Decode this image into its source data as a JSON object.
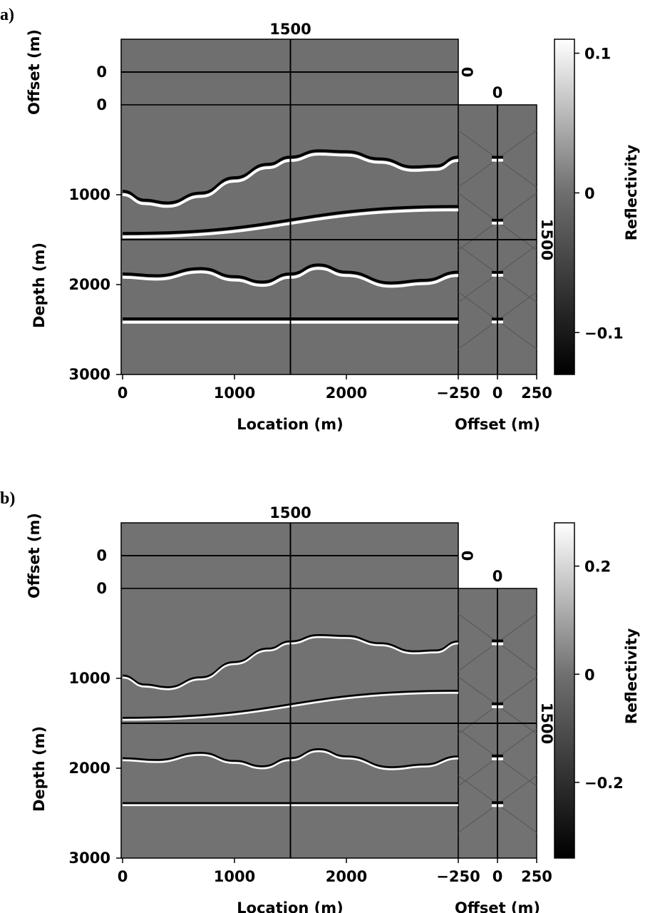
{
  "chart_data": [
    {
      "type": "heatmap",
      "panel_label": "a)",
      "xlabel": "Location (m)",
      "ylabel": "Depth (m)",
      "top_ylabel": "Offset (m)",
      "gather_xlabel": "Offset (m)",
      "colorbar_label": "Reflectivity",
      "x_ticks": [
        "0",
        "1000",
        "2000"
      ],
      "x_tick_values": [
        0,
        1000,
        2000
      ],
      "xlim": [
        0,
        3000
      ],
      "y_ticks": [
        "1000",
        "2000",
        "3000"
      ],
      "y_tick_values": [
        1000,
        2000,
        3000
      ],
      "ylim": [
        0,
        3000
      ],
      "depth_zero_label": "0",
      "offset_zero_label": "0",
      "offset_zero_right_label": "0",
      "gather_top_label": "0",
      "crosshair_location_label": "1500",
      "crosshair_depth_label": "1500",
      "crosshair_location": 1500,
      "crosshair_depth": 1500,
      "gather_ticks": [
        "−250",
        "0",
        "250"
      ],
      "gather_tick_values": [
        -250,
        0,
        250
      ],
      "colorbar_ticks": [
        "0.1",
        "0",
        "−0.1"
      ],
      "colorbar_tick_values": [
        0.1,
        0,
        -0.1
      ],
      "colorbar_range": [
        -0.13,
        0.11
      ],
      "reflectors": [
        {
          "name": "dome",
          "points": [
            [
              0,
              980
            ],
            [
              200,
              1080
            ],
            [
              400,
              1110
            ],
            [
              700,
              1000
            ],
            [
              1000,
              830
            ],
            [
              1300,
              680
            ],
            [
              1500,
              600
            ],
            [
              1750,
              530
            ],
            [
              2000,
              540
            ],
            [
              2300,
              620
            ],
            [
              2600,
              710
            ],
            [
              2800,
              700
            ],
            [
              3000,
              600
            ]
          ]
        },
        {
          "name": "dipping",
          "points": [
            [
              0,
              1450
            ],
            [
              3000,
              1150
            ]
          ]
        },
        {
          "name": "wavy",
          "points": [
            [
              0,
              1900
            ],
            [
              300,
              1920
            ],
            [
              700,
              1840
            ],
            [
              1000,
              1930
            ],
            [
              1250,
              1990
            ],
            [
              1500,
              1900
            ],
            [
              1750,
              1800
            ],
            [
              2000,
              1880
            ],
            [
              2400,
              2000
            ],
            [
              2700,
              1970
            ],
            [
              3000,
              1880
            ]
          ]
        },
        {
          "name": "flat",
          "points": [
            [
              0,
              2400
            ],
            [
              3000,
              2400
            ]
          ]
        }
      ],
      "gather_focus_depths": [
        600,
        1300,
        1880,
        2400
      ]
    },
    {
      "type": "heatmap",
      "panel_label": "b)",
      "xlabel": "Location (m)",
      "ylabel": "Depth (m)",
      "top_ylabel": "Offset (m)",
      "gather_xlabel": "Offset (m)",
      "colorbar_label": "Reflectivity",
      "x_ticks": [
        "0",
        "1000",
        "2000"
      ],
      "x_tick_values": [
        0,
        1000,
        2000
      ],
      "xlim": [
        0,
        3000
      ],
      "y_ticks": [
        "1000",
        "2000",
        "3000"
      ],
      "y_tick_values": [
        1000,
        2000,
        3000
      ],
      "ylim": [
        0,
        3000
      ],
      "depth_zero_label": "0",
      "offset_zero_label": "0",
      "offset_zero_right_label": "0",
      "gather_top_label": "0",
      "crosshair_location_label": "1500",
      "crosshair_depth_label": "1500",
      "crosshair_location": 1500,
      "crosshair_depth": 1500,
      "gather_ticks": [
        "−250",
        "0",
        "250"
      ],
      "gather_tick_values": [
        -250,
        0,
        250
      ],
      "colorbar_ticks": [
        "0.2",
        "0",
        "−0.2"
      ],
      "colorbar_tick_values": [
        0.2,
        0,
        -0.2
      ],
      "colorbar_range": [
        -0.34,
        0.28
      ],
      "reflectors": [
        {
          "name": "dome",
          "points": [
            [
              0,
              980
            ],
            [
              200,
              1080
            ],
            [
              400,
              1110
            ],
            [
              700,
              1000
            ],
            [
              1000,
              830
            ],
            [
              1300,
              680
            ],
            [
              1500,
              600
            ],
            [
              1750,
              530
            ],
            [
              2000,
              540
            ],
            [
              2300,
              620
            ],
            [
              2600,
              710
            ],
            [
              2800,
              700
            ],
            [
              3000,
              600
            ]
          ]
        },
        {
          "name": "dipping",
          "points": [
            [
              0,
              1450
            ],
            [
              3000,
              1150
            ]
          ]
        },
        {
          "name": "wavy",
          "points": [
            [
              0,
              1900
            ],
            [
              300,
              1920
            ],
            [
              700,
              1840
            ],
            [
              1000,
              1930
            ],
            [
              1250,
              1990
            ],
            [
              1500,
              1900
            ],
            [
              1750,
              1800
            ],
            [
              2000,
              1880
            ],
            [
              2400,
              2000
            ],
            [
              2700,
              1970
            ],
            [
              3000,
              1880
            ]
          ]
        },
        {
          "name": "flat",
          "points": [
            [
              0,
              2400
            ],
            [
              3000,
              2400
            ]
          ]
        }
      ],
      "gather_focus_depths": [
        600,
        1300,
        1880,
        2400
      ]
    }
  ]
}
